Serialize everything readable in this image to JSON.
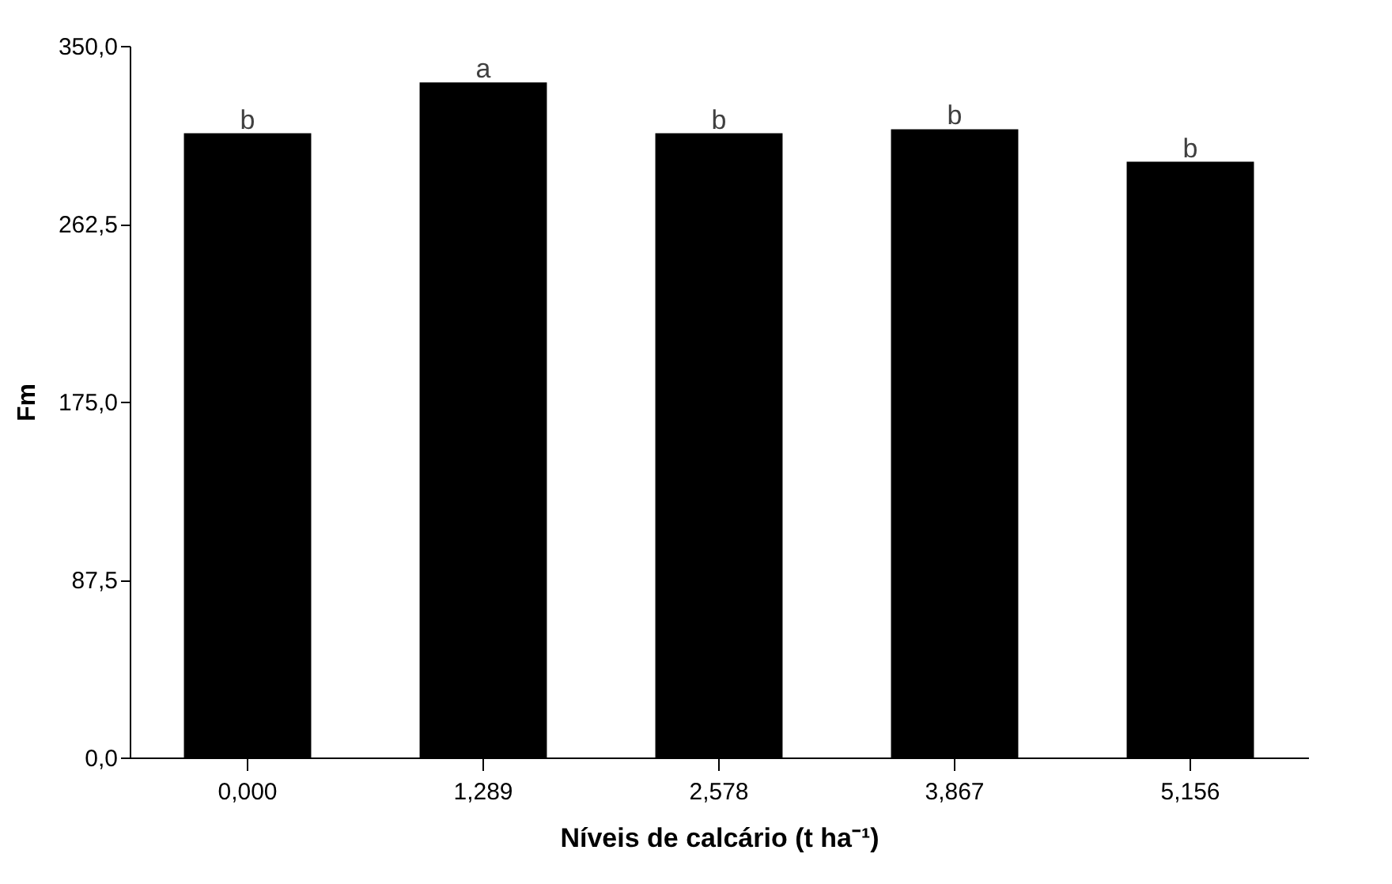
{
  "chart_data": {
    "type": "bar",
    "xlabel": "Níveis de calcário (t ha⁻¹)",
    "ylabel": "Fm",
    "categories": [
      "0,000",
      "1,289",
      "2,578",
      "3,867",
      "5,156"
    ],
    "values": [
      307,
      332,
      307,
      309,
      293
    ],
    "color": "#000000",
    "ylim": [
      0,
      350
    ],
    "yticks": [
      {
        "value": 0,
        "label": "0,0"
      },
      {
        "value": 87.5,
        "label": "87,5"
      },
      {
        "value": 175,
        "label": "175,0"
      },
      {
        "value": 262.5,
        "label": "262,5"
      },
      {
        "value": 350,
        "label": "350,0"
      }
    ],
    "annotations": [
      {
        "text": "b",
        "x": "0,000",
        "y": 307
      },
      {
        "text": "a",
        "x": "1,289",
        "y": 332
      },
      {
        "text": "b",
        "x": "2,578",
        "y": 307
      },
      {
        "text": "b",
        "x": "3,867",
        "y": 309
      },
      {
        "text": "b",
        "x": "5,156",
        "y": 293
      }
    ]
  }
}
